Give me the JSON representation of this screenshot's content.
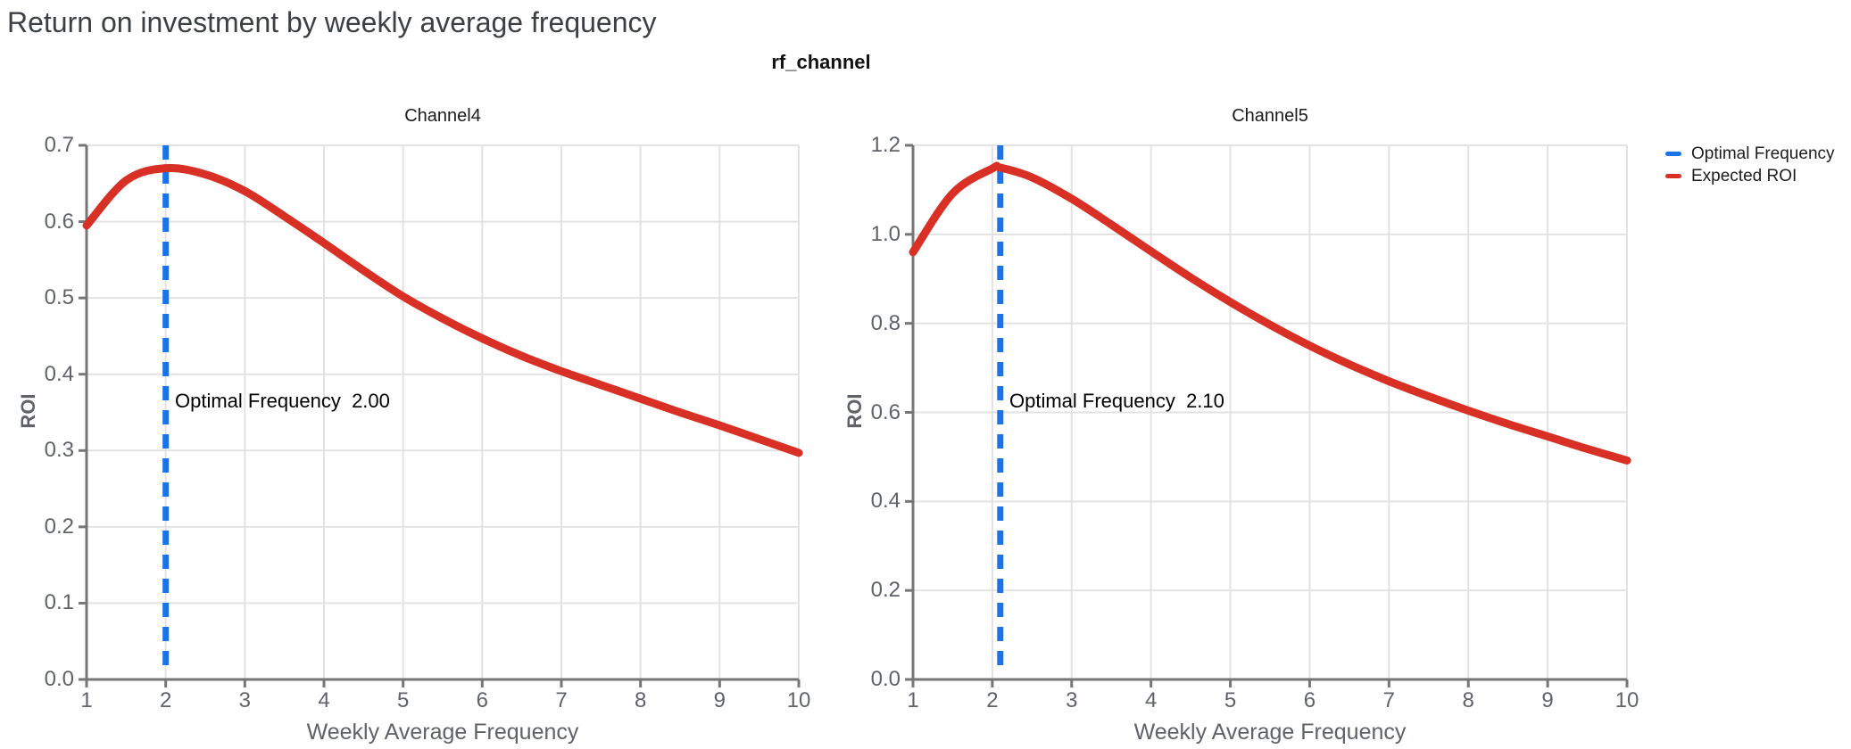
{
  "page_title": "Return on investment by weekly average frequency",
  "figure_subtitle": "rf_channel",
  "colors": {
    "accent_blue": "#1a73e8",
    "accent_red": "#d93025",
    "grid": "#e2e2e2",
    "axis": "#767676",
    "tick_text": "#5f6368",
    "title_text": "#3c4043"
  },
  "legend": {
    "position": "top-right",
    "items": [
      {
        "label": "Optimal Frequency",
        "color": "#1a73e8"
      },
      {
        "label": "Expected ROI",
        "color": "#d93025"
      }
    ]
  },
  "chart_data": [
    {
      "type": "line",
      "title": "Channel4",
      "xlabel": "Weekly Average Frequency",
      "ylabel": "ROI",
      "xlim": [
        1,
        10
      ],
      "ylim": [
        0.0,
        0.7
      ],
      "grid": true,
      "xticks": [
        1,
        2,
        3,
        4,
        5,
        6,
        7,
        8,
        9,
        10
      ],
      "xtick_labels": [
        "1",
        "2",
        "3",
        "4",
        "5",
        "6",
        "7",
        "8",
        "9",
        "10"
      ],
      "yticks": [
        0.0,
        0.1,
        0.2,
        0.3,
        0.4,
        0.5,
        0.6,
        0.7
      ],
      "ytick_labels": [
        "0.0",
        "0.1",
        "0.2",
        "0.3",
        "0.4",
        "0.5",
        "0.6",
        "0.7"
      ],
      "vline": {
        "label": "Optimal Frequency",
        "x": 2.0,
        "color": "#1a73e8",
        "style": "dashed"
      },
      "annotation": "Optimal Frequency  2.00",
      "optimal_frequency": "2.00",
      "series": [
        {
          "name": "Expected ROI",
          "color": "#d93025",
          "x": [
            1,
            1.5,
            2,
            2.5,
            3,
            3.5,
            4,
            4.5,
            5,
            5.5,
            6,
            6.5,
            7,
            7.5,
            8,
            8.5,
            9,
            9.5,
            10
          ],
          "y": [
            0.595,
            0.654,
            0.67,
            0.662,
            0.64,
            0.607,
            0.572,
            0.536,
            0.502,
            0.473,
            0.447,
            0.424,
            0.404,
            0.386,
            0.368,
            0.35,
            0.333,
            0.315,
            0.297
          ]
        }
      ]
    },
    {
      "type": "line",
      "title": "Channel5",
      "xlabel": "Weekly Average Frequency",
      "ylabel": "ROI",
      "xlim": [
        1,
        10
      ],
      "ylim": [
        0.0,
        1.2
      ],
      "grid": true,
      "xticks": [
        1,
        2,
        3,
        4,
        5,
        6,
        7,
        8,
        9,
        10
      ],
      "xtick_labels": [
        "1",
        "2",
        "3",
        "4",
        "5",
        "6",
        "7",
        "8",
        "9",
        "10"
      ],
      "yticks": [
        0.0,
        0.2,
        0.4,
        0.6,
        0.8,
        1.0,
        1.2
      ],
      "ytick_labels": [
        "0.0",
        "0.2",
        "0.4",
        "0.6",
        "0.8",
        "1.0",
        "1.2"
      ],
      "vline": {
        "label": "Optimal Frequency",
        "x": 2.1,
        "color": "#1a73e8",
        "style": "dashed"
      },
      "annotation": "Optimal Frequency  2.10",
      "optimal_frequency": "2.10",
      "series": [
        {
          "name": "Expected ROI",
          "color": "#d93025",
          "x": [
            1,
            1.5,
            2,
            2.1,
            2.5,
            3,
            3.5,
            4,
            4.5,
            5,
            5.5,
            6,
            6.5,
            7,
            7.5,
            8,
            8.5,
            9,
            9.5,
            10
          ],
          "y": [
            0.96,
            1.092,
            1.148,
            1.15,
            1.128,
            1.08,
            1.022,
            0.962,
            0.903,
            0.848,
            0.797,
            0.75,
            0.708,
            0.67,
            0.636,
            0.604,
            0.574,
            0.546,
            0.518,
            0.492
          ]
        }
      ]
    }
  ]
}
